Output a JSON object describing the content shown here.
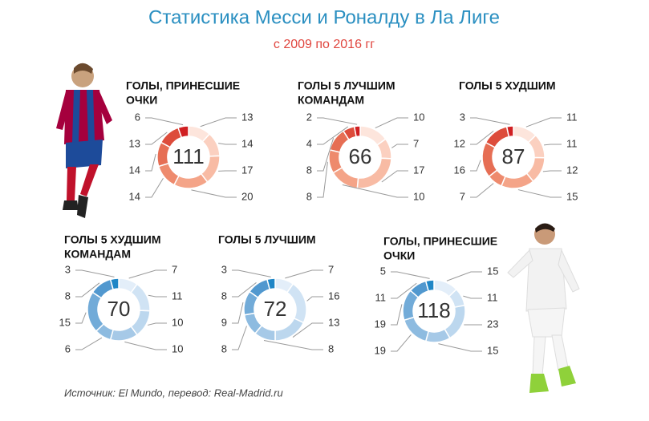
{
  "header": {
    "title": "Статистика Месси и Роналду в Ла Лиге",
    "subtitle": "с 2009 по 2016 гг"
  },
  "source": "Источник: El Mundo, перевод: Real-Madrid.ru",
  "chart_data": [
    {
      "type": "donut",
      "title": [
        "ГОЛЫ, ПРИНЕСШИЕ",
        "ОЧКИ"
      ],
      "total": 111,
      "values": [
        13,
        14,
        17,
        20,
        14,
        14,
        13,
        6
      ],
      "colors": [
        "#fde5dc",
        "#fbd0c0",
        "#f8bba4",
        "#f4a488",
        "#ee8a6d",
        "#e66e54",
        "#dd4c3b",
        "#d01f22"
      ]
    },
    {
      "type": "donut",
      "title": [
        "ГОЛЫ 5 ЛУЧШИМ",
        "КОМАНДАМ"
      ],
      "total": 66,
      "values": [
        10,
        7,
        17,
        10,
        8,
        8,
        4,
        2
      ],
      "colors": [
        "#fde5dc",
        "#fbd0c0",
        "#f8bba4",
        "#f4a488",
        "#ee8a6d",
        "#e66e54",
        "#dd4c3b",
        "#d01f22"
      ]
    },
    {
      "type": "donut",
      "title": [
        "ГОЛЫ 5 ХУДШИМ"
      ],
      "total": 87,
      "values": [
        11,
        11,
        12,
        15,
        7,
        16,
        12,
        3
      ],
      "colors": [
        "#fde5dc",
        "#fbd0c0",
        "#f8bba4",
        "#f4a488",
        "#ee8a6d",
        "#e66e54",
        "#dd4c3b",
        "#d01f22"
      ]
    },
    {
      "type": "donut",
      "title": [
        "ГОЛЫ 5 ХУДШИМ",
        "КОМАНДАМ"
      ],
      "total": 70,
      "values": [
        7,
        11,
        10,
        10,
        6,
        15,
        8,
        3
      ],
      "colors": [
        "#e3eef9",
        "#d0e3f4",
        "#bcd7ee",
        "#a6c9e7",
        "#8dbbe0",
        "#72abd8",
        "#5198cf",
        "#1f86c6"
      ]
    },
    {
      "type": "donut",
      "title": [
        "ГОЛЫ 5 ЛУЧШИМ"
      ],
      "total": 72,
      "values": [
        7,
        16,
        13,
        8,
        8,
        9,
        8,
        3
      ],
      "colors": [
        "#e3eef9",
        "#d0e3f4",
        "#bcd7ee",
        "#a6c9e7",
        "#8dbbe0",
        "#72abd8",
        "#5198cf",
        "#1f86c6"
      ]
    },
    {
      "type": "donut",
      "title": [
        "ГОЛЫ, ПРИНЕСШИЕ",
        "ОЧКИ"
      ],
      "total": 118,
      "values": [
        15,
        11,
        23,
        15,
        19,
        19,
        11,
        5
      ],
      "colors": [
        "#e3eef9",
        "#d0e3f4",
        "#bcd7ee",
        "#a6c9e7",
        "#8dbbe0",
        "#72abd8",
        "#5198cf",
        "#1f86c6"
      ]
    }
  ]
}
